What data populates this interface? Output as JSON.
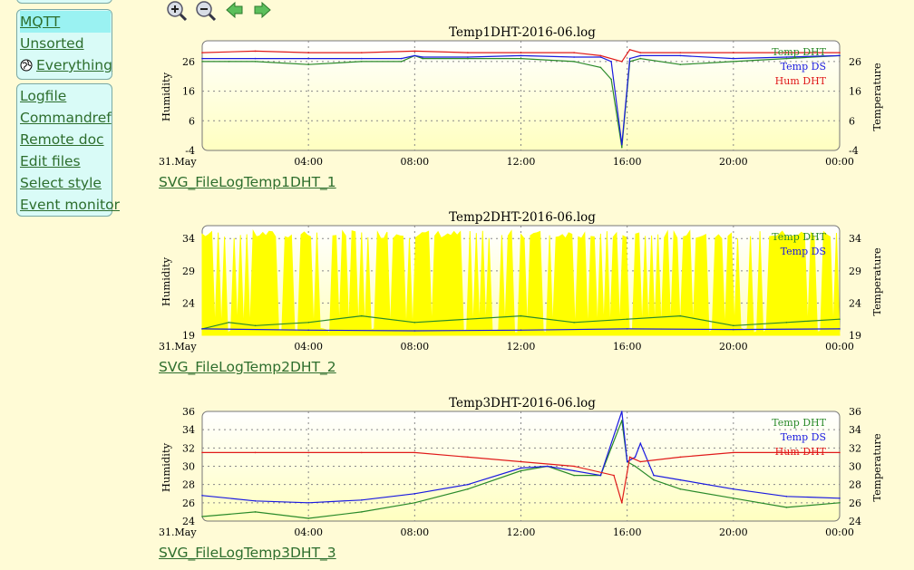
{
  "menu": {
    "group1": [
      {
        "label": "MQTT",
        "selected": true
      },
      {
        "label": "Unsorted",
        "selected": false
      },
      {
        "label": "Everything",
        "selected": false,
        "icon": "globe-icon"
      }
    ],
    "group2": [
      {
        "label": "Logfile"
      },
      {
        "label": "Commandref"
      },
      {
        "label": "Remote doc"
      },
      {
        "label": "Edit files"
      },
      {
        "label": "Select style"
      },
      {
        "label": "Event monitor"
      }
    ]
  },
  "zoom": {
    "buttons": [
      {
        "name": "zoom-in-icon"
      },
      {
        "name": "zoom-out-icon"
      },
      {
        "name": "arrow-left-icon"
      },
      {
        "name": "arrow-right-icon"
      }
    ]
  },
  "colors": {
    "temp_dht": "#2a8a2a",
    "temp_ds": "#1a1ae0",
    "hum_dht": "#e01a1a",
    "fill_yellow": "#ffff00",
    "link": "#2d6e2d",
    "menu_bg": "#d9fbf7",
    "menu_selected": "#9af2f2",
    "page_bg": "#fffbd6"
  },
  "plots": [
    {
      "title": "Temp1DHT-2016-06.log",
      "link": "SVG_FileLogTemp1DHT_1",
      "ylabel_left": "Humidity",
      "ylabel_right": "Temperature",
      "yticks": [
        "26",
        "16",
        "6",
        "-4"
      ],
      "ytick_values": [
        26,
        16,
        6,
        -4
      ],
      "ylim": [
        -4,
        33
      ],
      "x_start_label": "31.May",
      "xticks": [
        "04:00",
        "08:00",
        "12:00",
        "16:00",
        "20:00",
        "00:00"
      ],
      "legend": [
        "Temp DHT",
        "Temp DS",
        "Hum DHT"
      ]
    },
    {
      "title": "Temp2DHT-2016-06.log",
      "link": "SVG_FileLogTemp2DHT_2",
      "ylabel_left": "Humidity",
      "ylabel_right": "Temperature",
      "yticks": [
        "34",
        "29",
        "24",
        "19"
      ],
      "ytick_values": [
        34,
        29,
        24,
        19
      ],
      "ylim": [
        19,
        36
      ],
      "x_start_label": "31.May",
      "xticks": [
        "04:00",
        "08:00",
        "12:00",
        "16:00",
        "20:00",
        "00:00"
      ],
      "legend": [
        "Temp DHT",
        "Temp DS"
      ]
    },
    {
      "title": "Temp3DHT-2016-06.log",
      "link": "SVG_FileLogTemp3DHT_3",
      "ylabel_left": "Humidity",
      "ylabel_right": "Temperature",
      "yticks": [
        "36",
        "34",
        "32",
        "30",
        "28",
        "26",
        "24"
      ],
      "ytick_values": [
        36,
        34,
        32,
        30,
        28,
        26,
        24
      ],
      "ylim": [
        24,
        36
      ],
      "x_start_label": "31.May",
      "xticks": [
        "04:00",
        "08:00",
        "12:00",
        "16:00",
        "20:00",
        "00:00"
      ],
      "legend": [
        "Temp DHT",
        "Temp DS",
        "Hum DHT"
      ]
    }
  ],
  "chart_data": [
    {
      "type": "line",
      "title": "Temp1DHT-2016-06.log",
      "xlabel": "",
      "ylabel": "Humidity",
      "ylabel_right": "Temperature",
      "x_range_hours": [
        0,
        24
      ],
      "ylim": [
        -4,
        33
      ],
      "grid": true,
      "legend_position": "top-right",
      "series": [
        {
          "name": "Temp DHT",
          "color": "#2a8a2a",
          "x": [
            0,
            1,
            2,
            4,
            6,
            7.5,
            8,
            8.3,
            10,
            12,
            14,
            15,
            15.4,
            15.8,
            16.1,
            16.5,
            18,
            20,
            22,
            24
          ],
          "y": [
            26,
            26,
            26,
            25,
            26,
            26,
            28,
            27,
            27,
            27,
            26,
            24,
            20,
            -3,
            26,
            27,
            25,
            26,
            27,
            28
          ]
        },
        {
          "name": "Temp DS",
          "color": "#1a1ae0",
          "x": [
            0,
            2,
            4,
            6,
            7.5,
            8,
            8.3,
            10,
            12,
            14,
            15,
            15.4,
            15.8,
            16.1,
            16.5,
            18,
            20,
            22,
            24
          ],
          "y": [
            27,
            27,
            27,
            27,
            27,
            28,
            27.5,
            27.5,
            28,
            27.5,
            27.5,
            26,
            -2,
            27,
            28,
            28,
            27,
            27.5,
            28
          ]
        },
        {
          "name": "Hum DHT",
          "color": "#e01a1a",
          "x": [
            0,
            2,
            4,
            6,
            8,
            10,
            12,
            14,
            15,
            15.8,
            16.1,
            16.5,
            18,
            20,
            22,
            24
          ],
          "y": [
            29,
            29.5,
            29,
            29,
            29.5,
            29,
            29,
            29,
            28,
            26,
            30,
            29,
            29,
            29,
            29,
            29
          ]
        }
      ]
    },
    {
      "type": "line",
      "title": "Temp2DHT-2016-06.log",
      "xlabel": "",
      "ylabel": "Humidity",
      "ylabel_right": "Temperature",
      "x_range_hours": [
        0,
        24
      ],
      "ylim": [
        19,
        36
      ],
      "grid": true,
      "legend_position": "top-right",
      "series": [
        {
          "name": "Temp DHT",
          "color": "#2a8a2a",
          "x": [
            0,
            1,
            2,
            4,
            6,
            8,
            10,
            12,
            14,
            16,
            18,
            20,
            22,
            24
          ],
          "y": [
            20,
            21,
            20.5,
            21,
            22,
            21,
            21.5,
            22,
            21,
            21.5,
            22,
            20.5,
            21,
            21.5
          ]
        },
        {
          "name": "Temp DS",
          "color": "#1a1ae0",
          "x": [
            0,
            4,
            8,
            12,
            16,
            20,
            24
          ],
          "y": [
            20,
            19.8,
            19.7,
            19.8,
            20,
            19.9,
            20
          ]
        }
      ]
    },
    {
      "type": "line",
      "title": "Temp3DHT-2016-06.log",
      "xlabel": "",
      "ylabel": "Humidity",
      "ylabel_right": "Temperature",
      "x_range_hours": [
        0,
        24
      ],
      "ylim": [
        24,
        36
      ],
      "grid": true,
      "legend_position": "top-right",
      "series": [
        {
          "name": "Temp DHT",
          "color": "#2a8a2a",
          "x": [
            0,
            2,
            4,
            6,
            8,
            10,
            12,
            13,
            14,
            15,
            15.8,
            16,
            16.3,
            17,
            18,
            20,
            22,
            24
          ],
          "y": [
            24.5,
            25,
            24.3,
            25,
            26,
            27.5,
            29.5,
            30,
            29,
            29,
            35,
            30.5,
            30,
            28.5,
            27.5,
            26.5,
            25.5,
            26
          ]
        },
        {
          "name": "Temp DS",
          "color": "#1a1ae0",
          "x": [
            0,
            2,
            4,
            6,
            8,
            10,
            12,
            13,
            14,
            15,
            15.8,
            16,
            16.3,
            16.5,
            17,
            18,
            20,
            22,
            24
          ],
          "y": [
            26.8,
            26.2,
            26,
            26.3,
            27,
            28,
            29.8,
            30,
            29.5,
            29,
            36,
            30.5,
            31,
            32.5,
            29,
            28.5,
            27.5,
            26.7,
            26.5
          ]
        },
        {
          "name": "Hum DHT",
          "color": "#e01a1a",
          "x": [
            0,
            2,
            4,
            6,
            8,
            10,
            12,
            14,
            15.5,
            15.8,
            16.1,
            16.5,
            18,
            20,
            22,
            24
          ],
          "y": [
            31.5,
            31.5,
            31.5,
            31.5,
            31.5,
            31,
            30.5,
            30,
            29,
            26,
            31,
            30.5,
            31,
            31.5,
            31.5,
            31.5
          ]
        }
      ]
    }
  ]
}
